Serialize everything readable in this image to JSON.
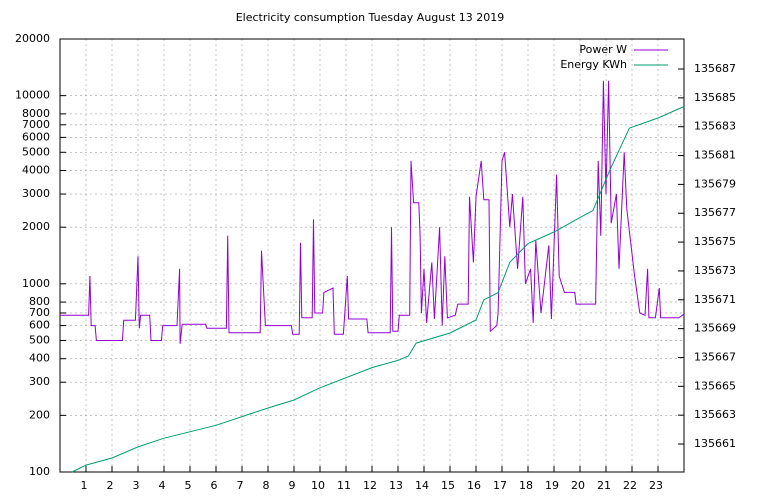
{
  "chart_data": {
    "type": "line",
    "title": "Electricity consumption Tuesday August 13 2019",
    "xlim": [
      0,
      24
    ],
    "xticks": [
      1,
      2,
      3,
      4,
      5,
      6,
      7,
      8,
      9,
      10,
      11,
      12,
      13,
      14,
      15,
      16,
      17,
      18,
      19,
      20,
      21,
      22,
      23
    ],
    "ylim": [
      100,
      20000
    ],
    "yscale": "log",
    "yticks": [
      100,
      200,
      300,
      400,
      500,
      600,
      700,
      800,
      1000,
      2000,
      3000,
      4000,
      5000,
      6000,
      7000,
      8000,
      10000,
      20000
    ],
    "y2lim": [
      135659.06,
      135689.08
    ],
    "y2ticks": [
      135661,
      135663,
      135665,
      135667,
      135669,
      135671,
      135673,
      135675,
      135677,
      135679,
      135681,
      135683,
      135685,
      135687
    ],
    "grid": true,
    "legend": "top-right",
    "series": [
      {
        "name": "Power W",
        "color": "#9400d3",
        "x": [
          0,
          1.1,
          1.15,
          1.2,
          1.35,
          1.4,
          2.4,
          2.45,
          2.9,
          3.0,
          3.05,
          3.1,
          3.45,
          3.5,
          3.9,
          3.95,
          4.5,
          4.6,
          4.62,
          4.7,
          5.6,
          5.65,
          6.4,
          6.45,
          6.5,
          7.7,
          7.75,
          7.9,
          8.9,
          8.95,
          9.2,
          9.25,
          9.3,
          9.7,
          9.75,
          9.8,
          10.1,
          10.15,
          10.5,
          10.55,
          10.9,
          11.05,
          11.1,
          11.8,
          11.85,
          12.7,
          12.75,
          12.8,
          13.0,
          13.05,
          13.45,
          13.5,
          13.6,
          13.8,
          13.85,
          13.9,
          14.0,
          14.1,
          14.3,
          14.4,
          14.6,
          14.7,
          14.8,
          14.9,
          15.2,
          15.3,
          15.7,
          15.75,
          15.9,
          16.0,
          16.2,
          16.3,
          16.5,
          16.55,
          16.8,
          16.85,
          17.0,
          17.1,
          17.3,
          17.4,
          17.6,
          17.8,
          17.9,
          18.1,
          18.2,
          18.3,
          18.5,
          18.8,
          18.9,
          19.1,
          19.2,
          19.4,
          19.8,
          19.85,
          20.6,
          20.7,
          20.8,
          20.9,
          21.0,
          21.1,
          21.2,
          21.4,
          21.5,
          21.7,
          21.8,
          22.1,
          22.3,
          22.5,
          22.6,
          22.65,
          22.9,
          23.05,
          23.1,
          23.8,
          24
        ],
        "values": [
          680,
          680,
          1100,
          600,
          600,
          500,
          500,
          640,
          640,
          1400,
          580,
          680,
          680,
          500,
          500,
          600,
          600,
          1200,
          480,
          610,
          610,
          580,
          580,
          1800,
          550,
          550,
          1500,
          600,
          600,
          540,
          540,
          1650,
          660,
          660,
          2200,
          700,
          700,
          900,
          950,
          540,
          540,
          1100,
          650,
          650,
          550,
          550,
          2000,
          560,
          560,
          680,
          680,
          4500,
          2700,
          2700,
          1800,
          700,
          1200,
          620,
          1300,
          650,
          2000,
          600,
          1400,
          660,
          680,
          780,
          780,
          2900,
          1300,
          2900,
          4500,
          2800,
          2800,
          560,
          600,
          700,
          4500,
          5000,
          2000,
          3000,
          1200,
          2900,
          1000,
          1200,
          620,
          1700,
          700,
          1600,
          650,
          3800,
          1100,
          900,
          900,
          780,
          780,
          4500,
          1800,
          12000,
          3000,
          12000,
          2100,
          3000,
          1200,
          5000,
          2500,
          1100,
          700,
          680,
          1200,
          660,
          660,
          950,
          660,
          660,
          690
        ]
      },
      {
        "name": "Energy KWh",
        "color": "#009e73",
        "axis": "y2",
        "x": [
          0.46,
          1,
          2,
          3,
          4,
          6,
          8,
          9,
          10,
          12,
          13,
          13.4,
          13.7,
          15,
          16,
          16.3,
          16.85,
          17.3,
          18,
          19,
          20,
          20.5,
          21.15,
          21.9,
          23,
          24
        ],
        "values": [
          135659.06,
          135659.54,
          135660.03,
          135660.8,
          135661.4,
          135662.3,
          135663.5,
          135664.05,
          135664.9,
          135666.3,
          135666.8,
          135667.1,
          135668.0,
          135668.7,
          135669.6,
          135671.0,
          135671.5,
          135673.6,
          135674.9,
          135675.7,
          135676.7,
          135677.2,
          135680.0,
          135682.9,
          135683.6,
          135684.4
        ]
      }
    ]
  }
}
